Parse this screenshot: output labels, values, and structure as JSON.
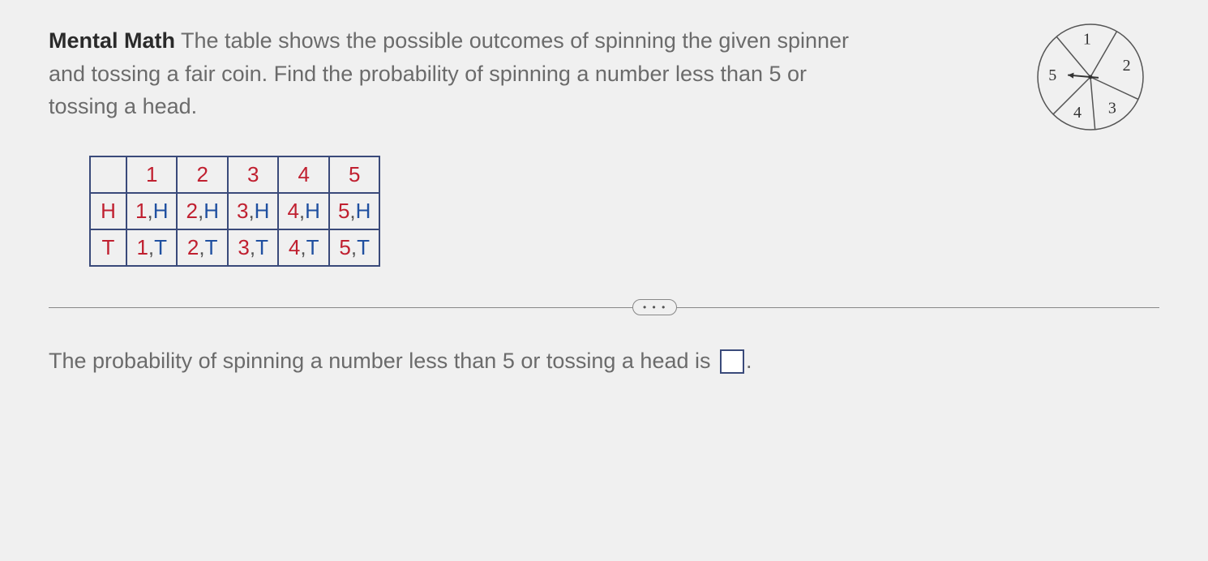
{
  "question": {
    "label": "Mental Math",
    "text_part1": " The table shows the possible outcomes of spinning the given spinner and tossing a fair coin. Find the probability of spinning a number less than 5 or tossing a head."
  },
  "spinner": {
    "sectors": [
      "1",
      "2",
      "3",
      "4",
      "5"
    ],
    "radius": 65,
    "stroke_color": "#555555",
    "stroke_width": 1.5,
    "text_color": "#333333",
    "font_size": 20,
    "background": "#f0f0f0",
    "arrow_color": "#333333"
  },
  "table": {
    "col_headers": [
      "1",
      "2",
      "3",
      "4",
      "5"
    ],
    "row_labels": [
      "H",
      "T"
    ],
    "cells": [
      [
        [
          "1",
          "H"
        ],
        [
          "2",
          "H"
        ],
        [
          "3",
          "H"
        ],
        [
          "4",
          "H"
        ],
        [
          "5",
          "H"
        ]
      ],
      [
        [
          "1",
          "T"
        ],
        [
          "2",
          "T"
        ],
        [
          "3",
          "T"
        ],
        [
          "4",
          "T"
        ],
        [
          "5",
          "T"
        ]
      ]
    ],
    "border_color": "#3a4a7a",
    "num_color": "#c02030",
    "letter_color": "#2050a0"
  },
  "divider": {
    "badge_text": "• • •"
  },
  "answer": {
    "prompt": "The probability of spinning a number less than 5 or tossing a head is ",
    "suffix": "."
  }
}
